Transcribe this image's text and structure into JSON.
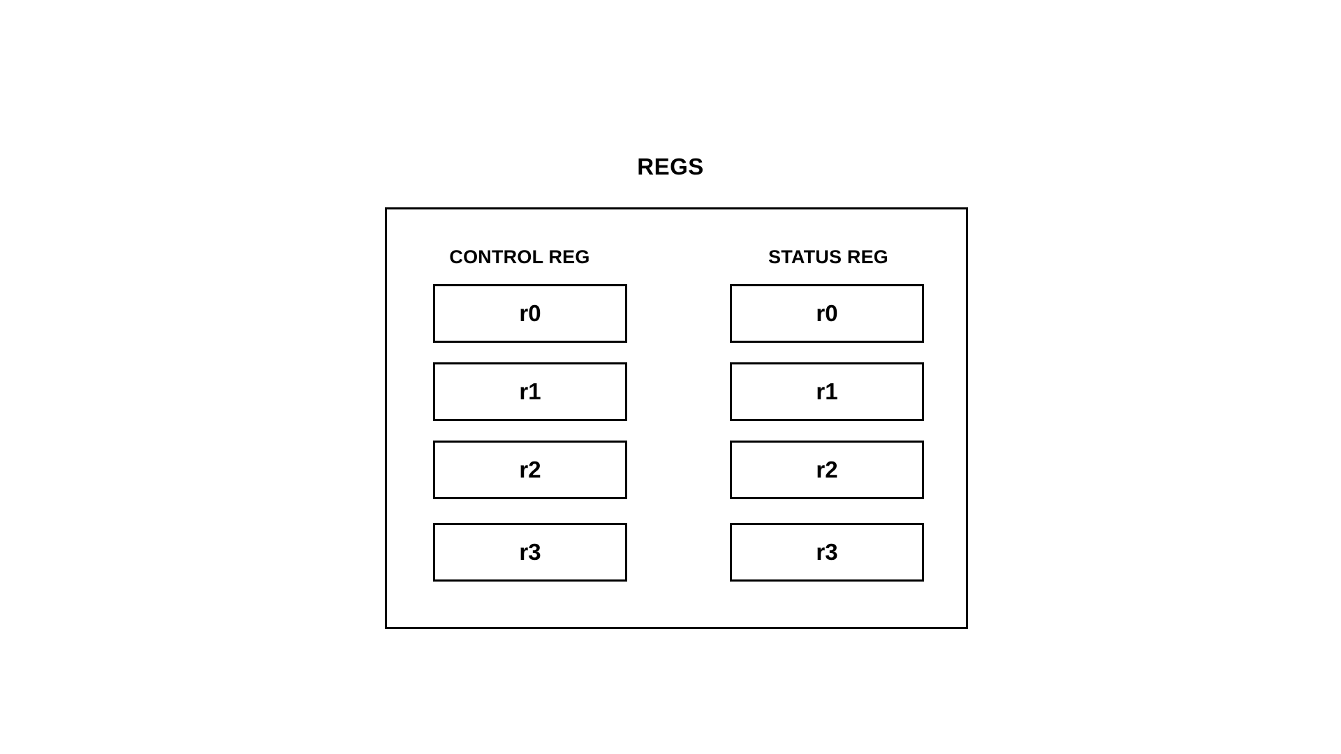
{
  "diagram": {
    "title": "REGS",
    "columns": [
      {
        "label": "CONTROL REG",
        "registers": [
          "r0",
          "r1",
          "r2",
          "r3"
        ]
      },
      {
        "label": "STATUS REG",
        "registers": [
          "r0",
          "r1",
          "r2",
          "r3"
        ]
      }
    ]
  }
}
